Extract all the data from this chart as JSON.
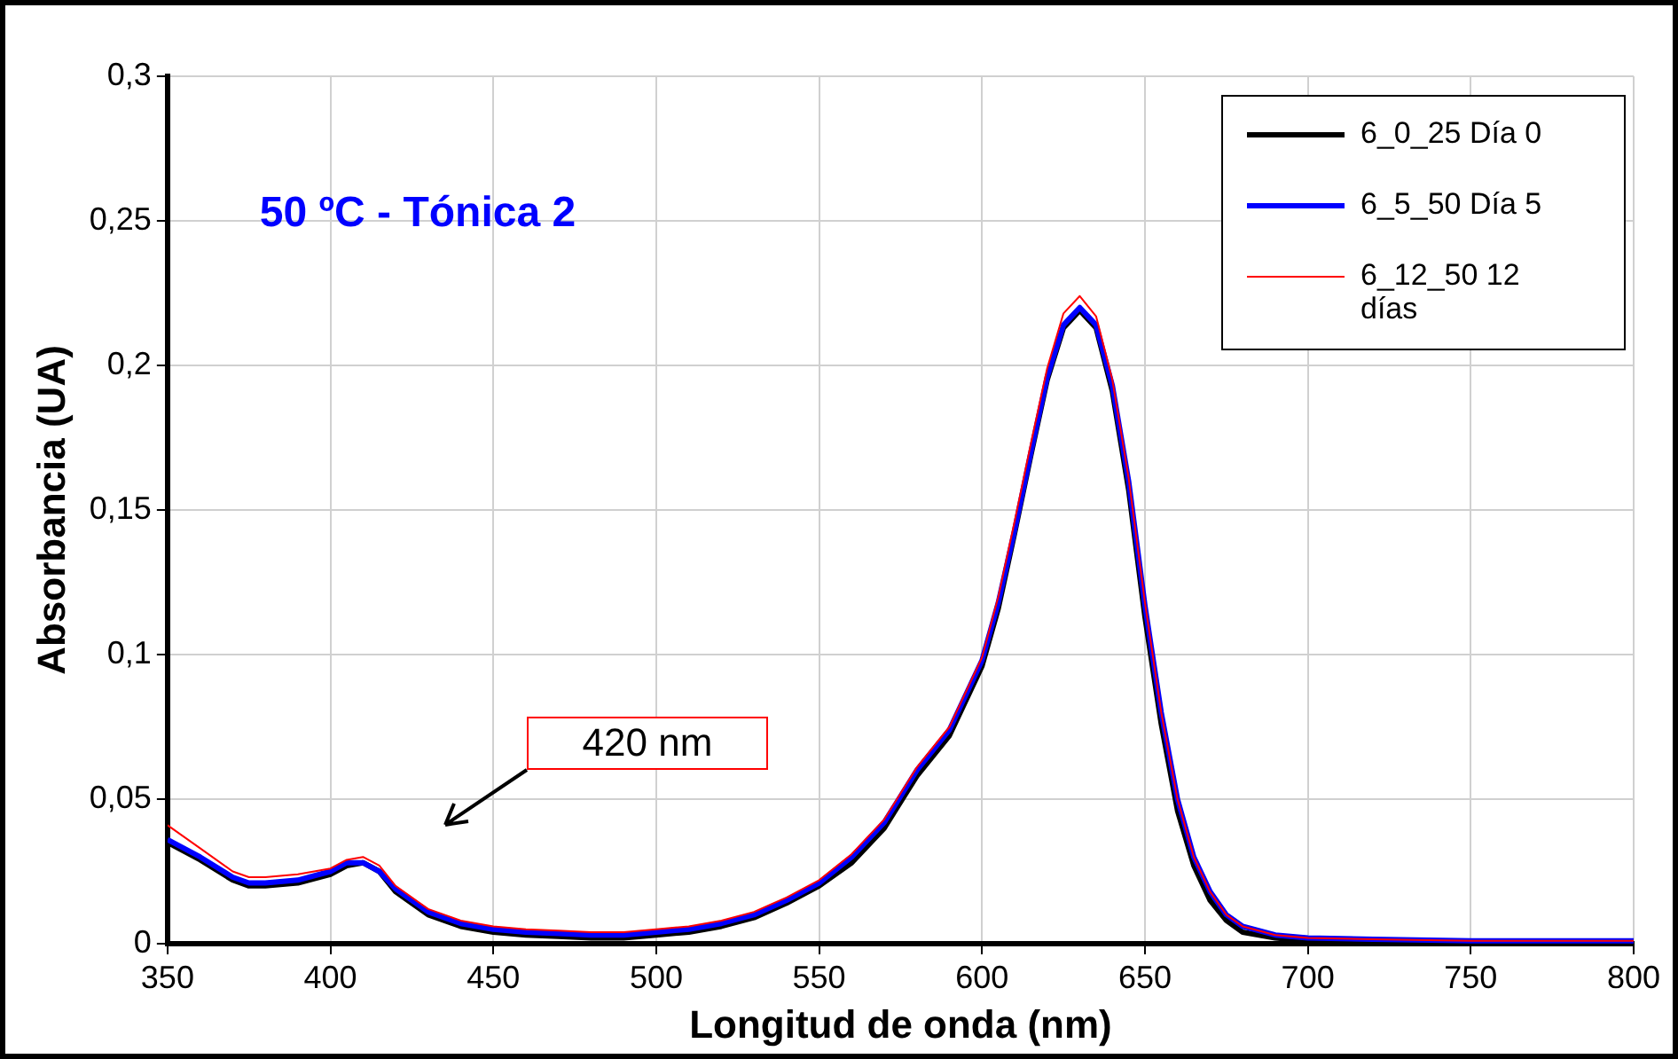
{
  "chart_data": {
    "type": "line",
    "title": "50 ºC - Tónica 2",
    "xlabel": "Longitud de onda (nm)",
    "ylabel": "Absorbancia (UA)",
    "x": [
      350,
      360,
      370,
      375,
      380,
      390,
      400,
      405,
      410,
      415,
      420,
      430,
      440,
      450,
      460,
      470,
      480,
      490,
      500,
      510,
      520,
      530,
      540,
      550,
      560,
      570,
      575,
      580,
      590,
      600,
      605,
      610,
      615,
      620,
      625,
      630,
      635,
      640,
      645,
      650,
      655,
      660,
      665,
      670,
      675,
      680,
      690,
      700,
      720,
      750,
      800
    ],
    "series": [
      {
        "name": "6_0_25 Día 0",
        "color": "#000000",
        "values": [
          0.035,
          0.029,
          0.022,
          0.02,
          0.02,
          0.021,
          0.024,
          0.027,
          0.028,
          0.025,
          0.018,
          0.01,
          0.006,
          0.004,
          0.003,
          0.0025,
          0.002,
          0.002,
          0.003,
          0.004,
          0.006,
          0.009,
          0.014,
          0.02,
          0.028,
          0.04,
          0.049,
          0.058,
          0.072,
          0.096,
          0.116,
          0.142,
          0.169,
          0.195,
          0.213,
          0.219,
          0.213,
          0.191,
          0.157,
          0.113,
          0.076,
          0.046,
          0.027,
          0.015,
          0.008,
          0.004,
          0.002,
          0.001,
          0.0005,
          0,
          0
        ]
      },
      {
        "name": "6_5_50 Día 5",
        "color": "#0000ff",
        "values": [
          0.036,
          0.03,
          0.023,
          0.021,
          0.021,
          0.022,
          0.025,
          0.028,
          0.028,
          0.025,
          0.019,
          0.011,
          0.007,
          0.005,
          0.004,
          0.0035,
          0.003,
          0.003,
          0.004,
          0.005,
          0.007,
          0.01,
          0.015,
          0.021,
          0.03,
          0.042,
          0.051,
          0.06,
          0.074,
          0.098,
          0.118,
          0.143,
          0.17,
          0.196,
          0.214,
          0.22,
          0.214,
          0.193,
          0.16,
          0.117,
          0.08,
          0.05,
          0.03,
          0.018,
          0.01,
          0.006,
          0.003,
          0.002,
          0.0015,
          0.001,
          0.001
        ]
      },
      {
        "name": "6_12_50 12 días",
        "color": "#ff0000",
        "values": [
          0.041,
          0.033,
          0.025,
          0.023,
          0.023,
          0.024,
          0.026,
          0.029,
          0.03,
          0.027,
          0.02,
          0.012,
          0.008,
          0.006,
          0.005,
          0.0045,
          0.004,
          0.004,
          0.005,
          0.006,
          0.008,
          0.011,
          0.016,
          0.022,
          0.031,
          0.043,
          0.052,
          0.061,
          0.075,
          0.099,
          0.12,
          0.146,
          0.173,
          0.199,
          0.218,
          0.224,
          0.217,
          0.195,
          0.161,
          0.118,
          0.08,
          0.05,
          0.03,
          0.018,
          0.01,
          0.006,
          0.003,
          0.002,
          0.0015,
          0.001,
          0.001
        ]
      }
    ],
    "xlim": [
      350,
      800
    ],
    "xticks": [
      350,
      400,
      450,
      500,
      550,
      600,
      650,
      700,
      750,
      800
    ],
    "ylim": [
      0,
      0.3
    ],
    "yticks": [
      0,
      {
        "value": 0.05,
        "label": "0,05"
      },
      {
        "value": 0.1,
        "label": "0,1"
      },
      {
        "value": 0.15,
        "label": "0,15"
      },
      {
        "value": 0.2,
        "label": "0,2"
      },
      {
        "value": 0.25,
        "label": "0,25"
      },
      {
        "value": 0.3,
        "label": "0,3"
      }
    ],
    "annotations": [
      "420 nm"
    ],
    "grid": true,
    "legend": "top right",
    "marker": "none",
    "line_style": "solid"
  }
}
